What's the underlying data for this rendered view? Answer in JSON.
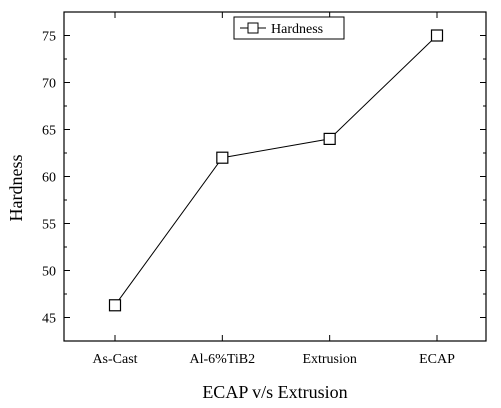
{
  "chart_data": {
    "type": "line",
    "categories": [
      "As-Cast",
      "Al-6%TiB2",
      "Extrusion",
      "ECAP"
    ],
    "series": [
      {
        "name": "Hardness",
        "values": [
          46.3,
          62.0,
          64.0,
          75.0
        ]
      }
    ],
    "xlabel": "ECAP v/s Extrusion",
    "ylabel": "Hardness",
    "ylim": [
      42.5,
      77.5
    ],
    "yticks": [
      45,
      50,
      55,
      60,
      65,
      70,
      75
    ],
    "legend": {
      "position": "top-center",
      "marker": "open-square"
    },
    "grid": false,
    "colors": {
      "line": "#000000",
      "marker_fill": "#ffffff",
      "axis": "#000000"
    }
  }
}
